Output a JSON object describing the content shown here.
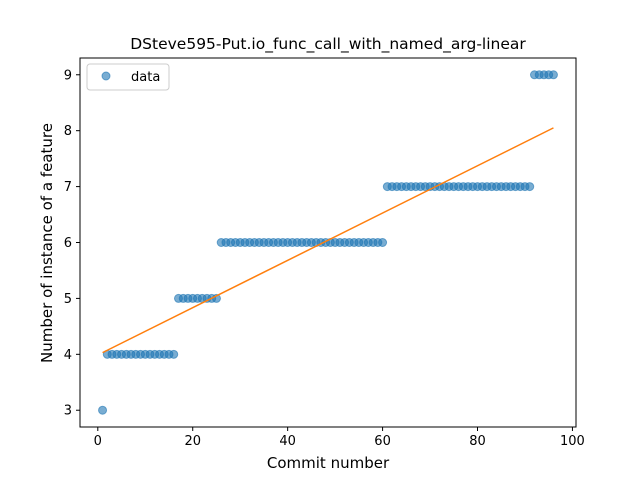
{
  "chart_data": {
    "type": "scatter",
    "title": "DSteve595-Put.io_func_call_with_named_arg-linear",
    "xlabel": "Commit number",
    "ylabel": "Number of instance of a feature",
    "xlim": [
      -3.75,
      100.75
    ],
    "ylim": [
      2.7,
      9.3
    ],
    "xticks": [
      0,
      20,
      40,
      60,
      80,
      100
    ],
    "yticks": [
      3,
      4,
      5,
      6,
      7,
      8,
      9
    ],
    "grid": false,
    "legend_position": "upper-left",
    "series": [
      {
        "name": "data",
        "kind": "scatter",
        "color": "#1f77b4",
        "x": [
          1,
          2,
          3,
          4,
          5,
          6,
          7,
          8,
          9,
          10,
          11,
          12,
          13,
          14,
          15,
          16,
          17,
          18,
          19,
          20,
          21,
          22,
          23,
          24,
          25,
          26,
          27,
          28,
          29,
          30,
          31,
          32,
          33,
          34,
          35,
          36,
          37,
          38,
          39,
          40,
          41,
          42,
          43,
          44,
          45,
          46,
          47,
          48,
          49,
          50,
          51,
          52,
          53,
          54,
          55,
          56,
          57,
          58,
          59,
          60,
          61,
          62,
          63,
          64,
          65,
          66,
          67,
          68,
          69,
          70,
          71,
          72,
          73,
          74,
          75,
          76,
          77,
          78,
          79,
          80,
          81,
          82,
          83,
          84,
          85,
          86,
          87,
          88,
          89,
          90,
          91,
          92,
          93,
          94,
          95,
          96
        ],
        "y": [
          3,
          4,
          4,
          4,
          4,
          4,
          4,
          4,
          4,
          4,
          4,
          4,
          4,
          4,
          4,
          4,
          5,
          5,
          5,
          5,
          5,
          5,
          5,
          5,
          5,
          6,
          6,
          6,
          6,
          6,
          6,
          6,
          6,
          6,
          6,
          6,
          6,
          6,
          6,
          6,
          6,
          6,
          6,
          6,
          6,
          6,
          6,
          6,
          6,
          6,
          6,
          6,
          6,
          6,
          6,
          6,
          6,
          6,
          6,
          6,
          7,
          7,
          7,
          7,
          7,
          7,
          7,
          7,
          7,
          7,
          7,
          7,
          7,
          7,
          7,
          7,
          7,
          7,
          7,
          7,
          7,
          7,
          7,
          7,
          7,
          7,
          7,
          7,
          7,
          7,
          7,
          9,
          9,
          9,
          9,
          9
        ]
      },
      {
        "kind": "line",
        "color": "#ff7f0e",
        "x": [
          1,
          96
        ],
        "y": [
          4.03,
          8.05
        ]
      }
    ]
  }
}
